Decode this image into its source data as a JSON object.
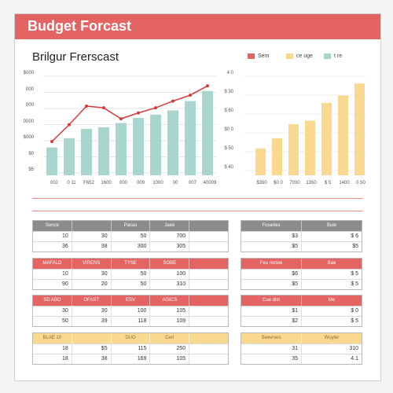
{
  "header": {
    "title": "Budget Forcast",
    "color": "#e46464"
  },
  "subtitle": "Brilgur Frerscast",
  "legend": [
    {
      "label": "Sem",
      "color": "#e46464"
    },
    {
      "label": "ce uge",
      "color": "#f8d98f"
    },
    {
      "label": "t re",
      "color": "#a9d5cf"
    }
  ],
  "chart_data": [
    {
      "type": "bar",
      "categories": [
        "002",
        "0 11",
        "F652",
        "1600",
        "000",
        "009",
        "1000",
        "00",
        "007",
        "40009"
      ],
      "yticks": [
        "$000",
        "000",
        "000",
        "0000",
        "$000",
        "$0",
        "$5"
      ],
      "series": [
        {
          "values": [
            33,
            44,
            55,
            57,
            62,
            68,
            72,
            77,
            88,
            100
          ]
        },
        {
          "values": [
            40,
            60,
            82,
            80,
            67,
            74,
            80,
            88,
            95,
            106
          ]
        }
      ],
      "colors": {
        "bar": "#a9d5cf",
        "line": "#d63a3a"
      }
    },
    {
      "type": "bar",
      "categories": [
        "$350",
        "$0 0",
        "7030",
        "1350",
        "$ 5",
        "1400",
        "0 50"
      ],
      "yticks": [
        "4 0",
        "$ 30",
        "$ 60",
        "$0 0",
        "$ 50",
        "$ 40"
      ],
      "series": [
        {
          "values": [
            29,
            40,
            55,
            59,
            78,
            86,
            99
          ]
        }
      ],
      "colors": {
        "bar": "#f8d98f"
      }
    }
  ],
  "tables": [
    {
      "color": "#8c8c8c",
      "headers": [
        "Sence",
        "",
        "Pacas",
        "Jaee",
        ""
      ],
      "rows": [
        [
          "10",
          "30",
          "50",
          "700",
          ""
        ],
        [
          "36",
          "38",
          "300",
          "305",
          ""
        ]
      ]
    },
    {
      "color": "#8c8c8c",
      "headers": [
        "Foseries",
        "Bule"
      ],
      "rows": [
        [
          "$3",
          "$ 6"
        ],
        [
          "$5",
          "$5"
        ]
      ]
    },
    {
      "color": "#e46464",
      "headers": [
        "MAFALD",
        "VIRENS",
        "TYSE",
        "SOBE",
        ""
      ],
      "rows": [
        [
          "10",
          "30",
          "50",
          "100",
          ""
        ],
        [
          "90",
          "20",
          "50",
          "310",
          ""
        ]
      ]
    },
    {
      "color": "#e46464",
      "headers": [
        "Feu rectee",
        "Bae"
      ],
      "rows": [
        [
          "$6",
          "$ 5"
        ],
        [
          "$5",
          "$ 5"
        ]
      ]
    },
    {
      "color": "#e46464",
      "headers": [
        "SD ABO",
        "OFAST",
        "ESV",
        "AGICS",
        ""
      ],
      "rows": [
        [
          "30",
          "30",
          "100",
          "105",
          ""
        ],
        [
          "50",
          "39",
          "118",
          "109",
          ""
        ]
      ]
    },
    {
      "color": "#e46464",
      "headers": [
        "Cue dist",
        "Me"
      ],
      "rows": [
        [
          "$1",
          "$ 0"
        ],
        [
          "$2",
          "$ 5"
        ]
      ]
    },
    {
      "color": "#f8d98f",
      "headers": [
        "BLAE 10",
        "",
        "DUO",
        "Cerl",
        ""
      ],
      "rows": [
        [
          "18",
          "$5",
          "115",
          "250",
          ""
        ],
        [
          "18",
          "38",
          "169",
          "105",
          ""
        ]
      ]
    },
    {
      "color": "#f8d98f",
      "headers": [
        "Seevrves",
        "Wuyler"
      ],
      "rows": [
        [
          "31",
          "310"
        ],
        [
          "35",
          "4.1"
        ]
      ]
    }
  ]
}
